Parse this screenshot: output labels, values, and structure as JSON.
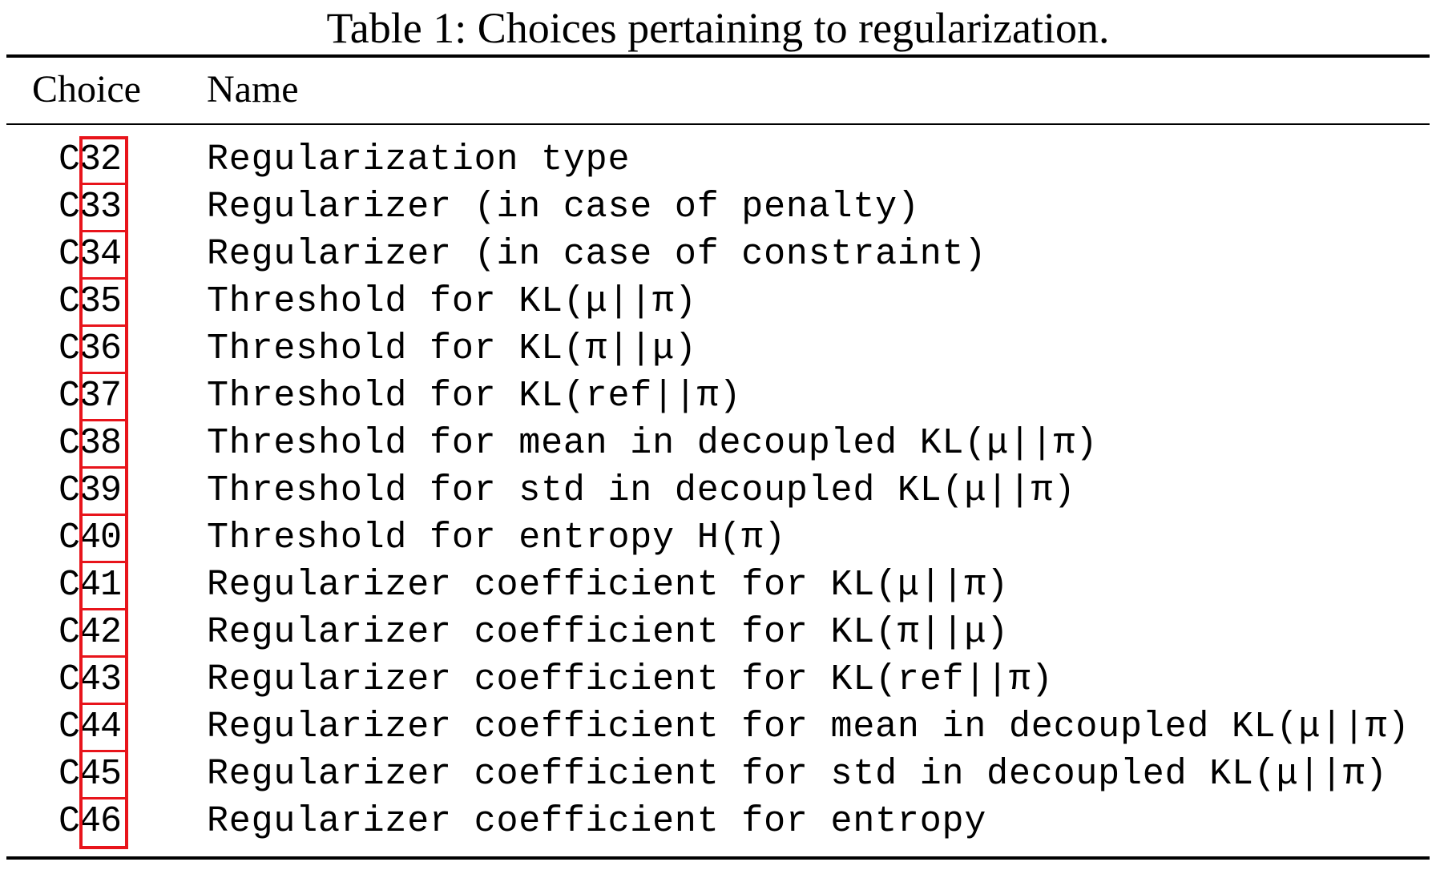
{
  "caption": "Table 1: Choices pertaining to regularization.",
  "headers": {
    "choice": "Choice",
    "name": "Name"
  },
  "rows": [
    {
      "prefix": "C",
      "num": "32",
      "name": "Regularization type"
    },
    {
      "prefix": "C",
      "num": "33",
      "name": "Regularizer (in case of penalty)"
    },
    {
      "prefix": "C",
      "num": "34",
      "name": "Regularizer (in case of constraint)"
    },
    {
      "prefix": "C",
      "num": "35",
      "name": "Threshold for KL(μ||π)"
    },
    {
      "prefix": "C",
      "num": "36",
      "name": "Threshold for KL(π||μ)"
    },
    {
      "prefix": "C",
      "num": "37",
      "name": "Threshold for KL(ref||π)"
    },
    {
      "prefix": "C",
      "num": "38",
      "name": "Threshold for mean in decoupled KL(μ||π)"
    },
    {
      "prefix": "C",
      "num": "39",
      "name": "Threshold for std in decoupled KL(μ||π)"
    },
    {
      "prefix": "C",
      "num": "40",
      "name": "Threshold for entropy H(π)"
    },
    {
      "prefix": "C",
      "num": "41",
      "name": "Regularizer coefficient for KL(μ||π)"
    },
    {
      "prefix": "C",
      "num": "42",
      "name": "Regularizer coefficient for KL(π||μ)"
    },
    {
      "prefix": "C",
      "num": "43",
      "name": "Regularizer coefficient for KL(ref||π)"
    },
    {
      "prefix": "C",
      "num": "44",
      "name": "Regularizer coefficient for mean in decoupled KL(μ||π)"
    },
    {
      "prefix": "C",
      "num": "45",
      "name": "Regularizer coefficient for std in decoupled KL(μ||π)"
    },
    {
      "prefix": "C",
      "num": "46",
      "name": "Regularizer coefficient for entropy"
    }
  ],
  "colors": {
    "highlight": "#e8141b",
    "text": "#000000",
    "background": "#ffffff"
  }
}
